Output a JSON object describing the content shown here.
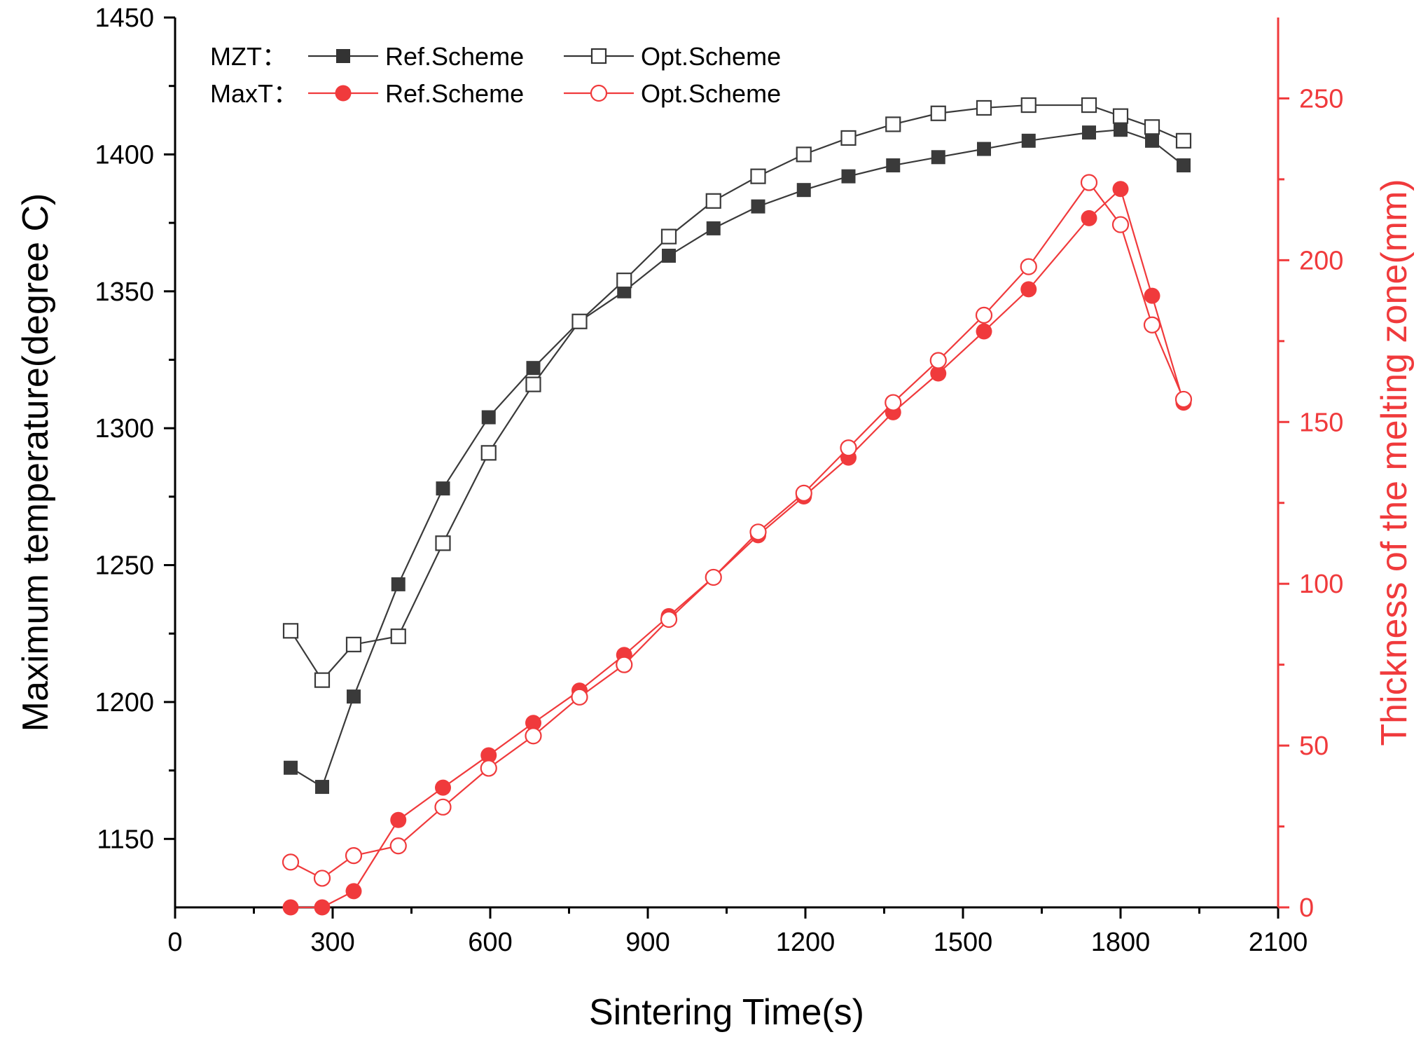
{
  "chart_data": {
    "type": "line",
    "title": "",
    "xlabel": "Sintering Time(s)",
    "ylabel_left": "Maximum temperature(degree C)",
    "ylabel_right": "Thickness of the melting zone(mm)",
    "xlim": [
      0,
      2100
    ],
    "ylim_left": [
      1125,
      1450
    ],
    "ylim_right": [
      0,
      275
    ],
    "x_ticks": [
      0,
      300,
      600,
      900,
      1200,
      1500,
      1800,
      2100
    ],
    "y_left_ticks": [
      1150,
      1200,
      1250,
      1300,
      1350,
      1400,
      1450
    ],
    "y_right_ticks": [
      0,
      50,
      100,
      150,
      200,
      250
    ],
    "grid": false,
    "legend_position": "top-left",
    "legend_groups": [
      {
        "prefix": "MZT：",
        "entries": [
          "Ref.Scheme",
          "Opt.Scheme"
        ]
      },
      {
        "prefix": "MaxT：",
        "entries": [
          "Ref.Scheme",
          "Opt.Scheme"
        ]
      }
    ],
    "colors": {
      "mzt": "#333333",
      "maxt": "#f03a3c",
      "right_axis": "#f03a3c",
      "axis": "#000000"
    },
    "series": [
      {
        "name": "MZT Ref.Scheme",
        "axis": "left",
        "marker": "filled-square",
        "color": "#3a3a3a",
        "x": [
          220,
          280,
          340,
          425,
          510,
          597,
          682,
          770,
          855,
          940,
          1025,
          1110,
          1197,
          1282,
          1367,
          1453,
          1540,
          1625,
          1740,
          1800,
          1860,
          1920
        ],
        "y": [
          1176,
          1169,
          1202,
          1243,
          1278,
          1304,
          1322,
          1339,
          1350,
          1363,
          1373,
          1381,
          1387,
          1392,
          1396,
          1399,
          1402,
          1405,
          1408,
          1409,
          1405,
          1396
        ]
      },
      {
        "name": "MZT Opt.Scheme",
        "axis": "left",
        "marker": "open-square",
        "color": "#3a3a3a",
        "x": [
          220,
          280,
          340,
          425,
          510,
          597,
          682,
          770,
          855,
          940,
          1025,
          1110,
          1197,
          1282,
          1367,
          1453,
          1540,
          1625,
          1740,
          1800,
          1860,
          1920
        ],
        "y": [
          1226,
          1208,
          1221,
          1224,
          1258,
          1291,
          1316,
          1339,
          1354,
          1370,
          1383,
          1392,
          1400,
          1406,
          1411,
          1415,
          1417,
          1418,
          1418,
          1414,
          1410,
          1405
        ]
      },
      {
        "name": "MaxT Ref.Scheme",
        "axis": "right",
        "marker": "filled-circle",
        "color": "#f03a3c",
        "x": [
          220,
          280,
          340,
          425,
          510,
          597,
          682,
          770,
          855,
          940,
          1025,
          1110,
          1197,
          1282,
          1367,
          1453,
          1540,
          1625,
          1740,
          1800,
          1860,
          1920
        ],
        "y": [
          0,
          0,
          5,
          27,
          37,
          47,
          57,
          67,
          78,
          90,
          102,
          115,
          127,
          139,
          153,
          165,
          178,
          191,
          213,
          222,
          189,
          156
        ]
      },
      {
        "name": "MaxT Opt.Scheme",
        "axis": "right",
        "marker": "open-circle",
        "color": "#f03a3c",
        "x": [
          220,
          280,
          340,
          425,
          510,
          597,
          682,
          770,
          855,
          940,
          1025,
          1110,
          1197,
          1282,
          1367,
          1453,
          1540,
          1625,
          1740,
          1800,
          1860,
          1920
        ],
        "y": [
          14,
          9,
          16,
          19,
          31,
          43,
          53,
          65,
          75,
          89,
          102,
          116,
          128,
          142,
          156,
          169,
          183,
          198,
          224,
          211,
          180,
          157
        ]
      }
    ]
  }
}
